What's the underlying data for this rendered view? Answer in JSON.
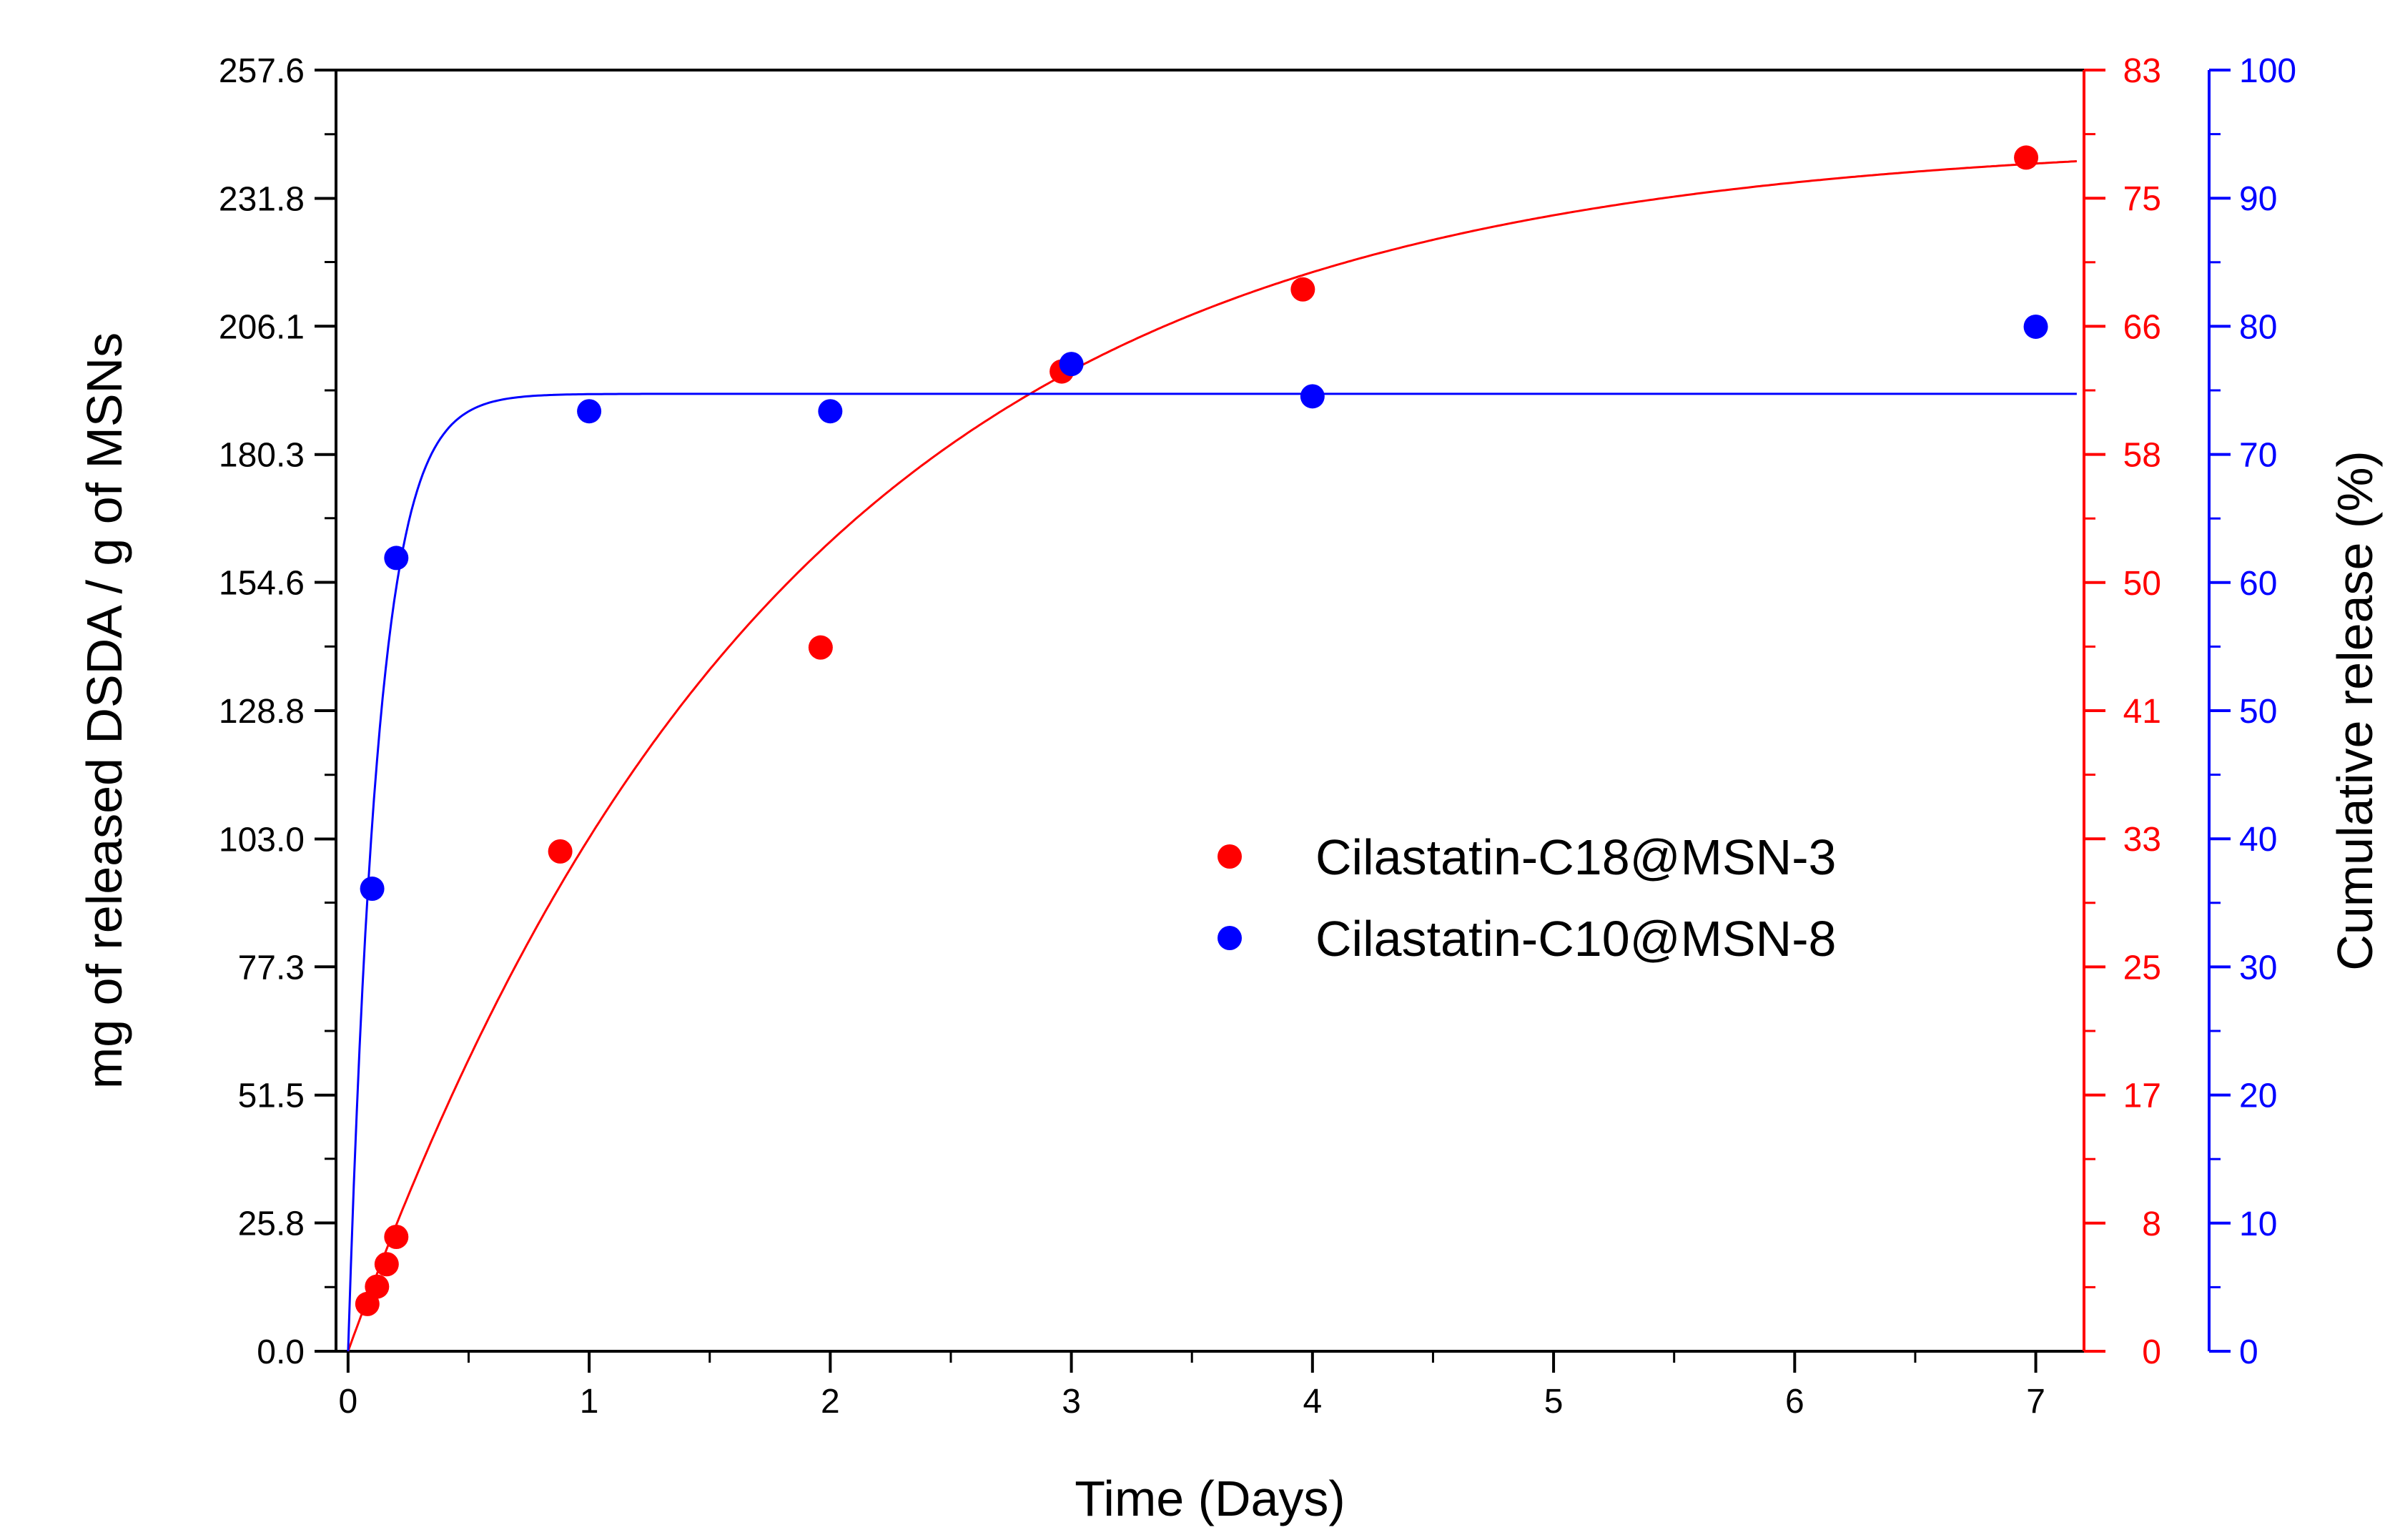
{
  "chart_data": {
    "type": "scatter",
    "xlabel": "Time (Days)",
    "ylabel": "mg of released DSDA / g of MSNs",
    "ylabel_right": "Cumulative release (%)",
    "xlim": [
      -0.05,
      7.2
    ],
    "x_ticks": [
      0,
      1,
      2,
      3,
      4,
      5,
      6,
      7
    ],
    "x_tick_labels": [
      "0",
      "1",
      "2",
      "3",
      "4",
      "5",
      "6",
      "7"
    ],
    "y_left": {
      "lim": [
        0,
        257.6
      ],
      "ticks": [
        0,
        25.8,
        51.5,
        77.3,
        103.0,
        128.8,
        154.6,
        180.3,
        206.1,
        231.8,
        257.6
      ],
      "tick_labels": [
        "0.0",
        "25.8",
        "51.5",
        "77.3",
        "103.0",
        "128.8",
        "154.6",
        "180.3",
        "206.1",
        "231.8",
        "257.6"
      ],
      "color": "#000000"
    },
    "y_right_red": {
      "lim": [
        0,
        83
      ],
      "tick_labels": [
        "0",
        "8",
        "17",
        "25",
        "33",
        "41",
        "50",
        "58",
        "66",
        "75",
        "83"
      ],
      "color": "#ff0000"
    },
    "y_right_blue": {
      "lim": [
        0,
        100
      ],
      "ticks": [
        0,
        10,
        20,
        30,
        40,
        50,
        60,
        70,
        80,
        90,
        100
      ],
      "tick_labels": [
        "0",
        "10",
        "20",
        "30",
        "40",
        "50",
        "60",
        "70",
        "80",
        "90",
        "100"
      ],
      "color": "#0000ff"
    },
    "series": [
      {
        "name": "Cilastatin-C18@MSN-3",
        "color": "#ff0000",
        "x": [
          0.08,
          0.12,
          0.16,
          0.2,
          0.88,
          1.96,
          2.96,
          3.96,
          6.96
        ],
        "y": [
          9.5,
          13.0,
          17.5,
          23.0,
          100.5,
          141.5,
          197.0,
          213.5,
          240.0
        ],
        "fit": {
          "model": "exponential",
          "ymax": 244,
          "k": 0.55
        }
      },
      {
        "name": "Cilastatin-C10@MSN-8",
        "color": "#0000ff",
        "x": [
          0.1,
          0.2,
          1.0,
          2.0,
          3.0,
          4.0,
          7.0
        ],
        "y": [
          93.0,
          159.5,
          189.0,
          189.0,
          198.5,
          192.0,
          206.0
        ],
        "fit": {
          "model": "exponential",
          "ymax": 192.5,
          "k": 8.0
        }
      }
    ],
    "legend": {
      "position": "right-center"
    }
  }
}
